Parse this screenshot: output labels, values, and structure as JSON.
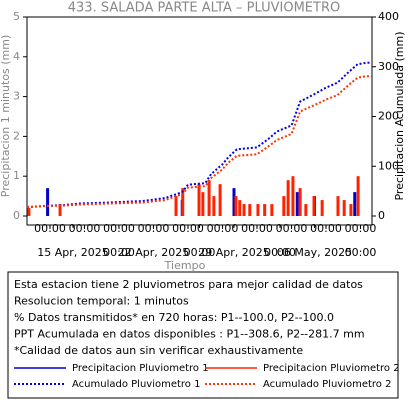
{
  "chart_data": {
    "type": "combo",
    "title": "433. SALADA PARTE ALTA – PLUVIOMETRO",
    "xlabel": "Tiempo",
    "ylabel": "Precipitacion 1 minutos (mm)",
    "y2label": "Precipitacion Acumulada (mm)",
    "xlim": [
      "2025-04-11T00:00",
      "2025-05-11T00:00"
    ],
    "ylim": [
      0,
      5
    ],
    "yticks": [
      0,
      1,
      2,
      3,
      4,
      5
    ],
    "y2lim": [
      0,
      400
    ],
    "y2ticks": [
      0,
      100,
      200,
      300,
      400
    ],
    "xticks": [
      {
        "value": "2025-04-13T00:00",
        "label": "00:00"
      },
      {
        "value": "2025-04-16T00:00",
        "label": "00:00"
      },
      {
        "value": "2025-04-19T00:00",
        "label": "00:00"
      },
      {
        "value": "2025-04-22T00:00",
        "label": "00:00"
      },
      {
        "value": "2025-04-25T00:00",
        "label": "00:00"
      },
      {
        "value": "2025-04-28T00:00",
        "label": "00:00"
      },
      {
        "value": "2025-05-01T00:00",
        "label": "00:00"
      },
      {
        "value": "2025-05-04T00:00",
        "label": "00:00"
      },
      {
        "value": "2025-05-07T00:00",
        "label": "00:00"
      },
      {
        "value": "2025-05-10T00:00",
        "label": "00:00"
      }
    ],
    "xticks2": [
      {
        "value": "2025-04-15T00:00",
        "label": "15 Apr, 2025"
      },
      {
        "value": "2025-04-19T00:00",
        "label": "00:00"
      },
      {
        "value": "2025-04-22T00:00",
        "label": "22 Apr, 2025"
      },
      {
        "value": "2025-04-26T00:00",
        "label": "00:00"
      },
      {
        "value": "2025-04-29T00:00",
        "label": "29 Apr, 2025"
      },
      {
        "value": "2025-05-03T00:00",
        "label": "00:00"
      },
      {
        "value": "2025-05-06T00:00",
        "label": "06 May, 2025"
      },
      {
        "value": "2025-05-10T00:00",
        "label": "00:00"
      }
    ],
    "series": [
      {
        "name": "Precipitacion Pluviometro 1",
        "color": "#0000cc",
        "kind": "bar",
        "x": [
          "2025-04-12T19:00",
          "2025-04-24T12:00",
          "2025-04-29T00:00",
          "2025-05-04T12:00",
          "2025-05-06T00:00",
          "2025-05-09T12:00"
        ],
        "values": [
          0.7,
          0.4,
          0.7,
          0.6,
          0.5,
          0.6
        ]
      },
      {
        "name": "Precipitacion Pluviometro 2",
        "color": "#ff2200",
        "kind": "bar",
        "x": [
          "2025-04-11T04:00",
          "2025-04-13T21:00",
          "2025-04-23T23:00",
          "2025-04-24T13:00",
          "2025-04-25T23:00",
          "2025-04-26T07:00",
          "2025-04-26T20:00",
          "2025-04-27T06:00",
          "2025-04-27T19:00",
          "2025-04-29T04:00",
          "2025-04-29T12:00",
          "2025-04-29T21:00",
          "2025-04-30T09:00",
          "2025-05-01T02:00",
          "2025-05-01T16:00",
          "2025-05-02T07:00",
          "2025-05-03T08:00",
          "2025-05-03T17:00",
          "2025-05-04T03:00",
          "2025-05-04T18:00",
          "2025-05-05T06:00",
          "2025-05-05T23:00",
          "2025-05-06T16:00",
          "2025-05-08T01:00",
          "2025-05-08T14:00",
          "2025-05-09T04:00",
          "2025-05-09T19:00"
        ],
        "values": [
          0.2,
          0.3,
          0.5,
          0.7,
          0.8,
          0.6,
          0.9,
          0.5,
          0.8,
          0.5,
          0.4,
          0.3,
          0.3,
          0.3,
          0.3,
          0.3,
          0.5,
          0.9,
          1.0,
          0.7,
          0.3,
          0.5,
          0.4,
          0.5,
          0.4,
          0.3,
          1.0
        ]
      },
      {
        "name": "Acumulado Pluviometro 1",
        "color": "#0000ee",
        "kind": "line",
        "axis": "y2",
        "x": [
          "2025-04-11T00:00",
          "2025-04-12T12:00",
          "2025-04-14T06:00",
          "2025-04-15T12:00",
          "2025-04-18T00:00",
          "2025-04-21T00:00",
          "2025-04-23T00:00",
          "2025-04-24T12:00",
          "2025-04-25T00:00",
          "2025-04-26T12:00",
          "2025-04-27T00:00",
          "2025-04-28T00:00",
          "2025-04-28T12:00",
          "2025-04-29T06:00",
          "2025-05-01T00:00",
          "2025-05-02T00:00",
          "2025-05-02T18:00",
          "2025-05-04T00:00",
          "2025-05-04T18:00",
          "2025-05-06T00:00",
          "2025-05-07T00:00",
          "2025-05-08T00:00",
          "2025-05-09T00:00",
          "2025-05-09T18:00",
          "2025-05-10T12:00",
          "2025-05-11T00:00"
        ],
        "values": [
          18,
          20,
          22,
          25,
          27,
          30,
          36,
          48,
          63,
          66,
          84,
          104,
          118,
          134,
          138,
          155,
          170,
          182,
          230,
          245,
          258,
          268,
          290,
          305,
          308,
          308
        ]
      },
      {
        "name": "Acumulado Pluviometro 2",
        "color": "#ff3300",
        "kind": "line",
        "axis": "y2",
        "x": [
          "2025-04-11T00:00",
          "2025-04-12T12:00",
          "2025-04-14T06:00",
          "2025-04-15T12:00",
          "2025-04-18T00:00",
          "2025-04-21T00:00",
          "2025-04-23T00:00",
          "2025-04-24T12:00",
          "2025-04-25T00:00",
          "2025-04-26T12:00",
          "2025-04-27T00:00",
          "2025-04-28T00:00",
          "2025-04-28T12:00",
          "2025-04-29T06:00",
          "2025-05-01T00:00",
          "2025-05-02T00:00",
          "2025-05-02T18:00",
          "2025-05-04T00:00",
          "2025-05-04T18:00",
          "2025-05-06T00:00",
          "2025-05-07T00:00",
          "2025-05-08T00:00",
          "2025-05-09T00:00",
          "2025-05-09T18:00",
          "2025-05-10T12:00",
          "2025-05-11T00:00"
        ],
        "values": [
          18,
          20,
          21,
          23,
          25,
          27,
          32,
          44,
          57,
          60,
          76,
          94,
          107,
          121,
          124,
          140,
          153,
          165,
          210,
          223,
          234,
          243,
          264,
          278,
          281,
          281
        ]
      }
    ],
    "notes": [
      "Esta estacion tiene 2 pluviometros para mejor calidad de datos",
      "Resolucion temporal: 1 minutos",
      "% Datos transmitidos* en 720 horas: P1--100.0, P2--100.0",
      "PPT Acumulada en datos disponibles : P1--308.6, P2--281.7 mm",
      "*Calidad de datos aun sin verificar exhaustivamente"
    ]
  }
}
